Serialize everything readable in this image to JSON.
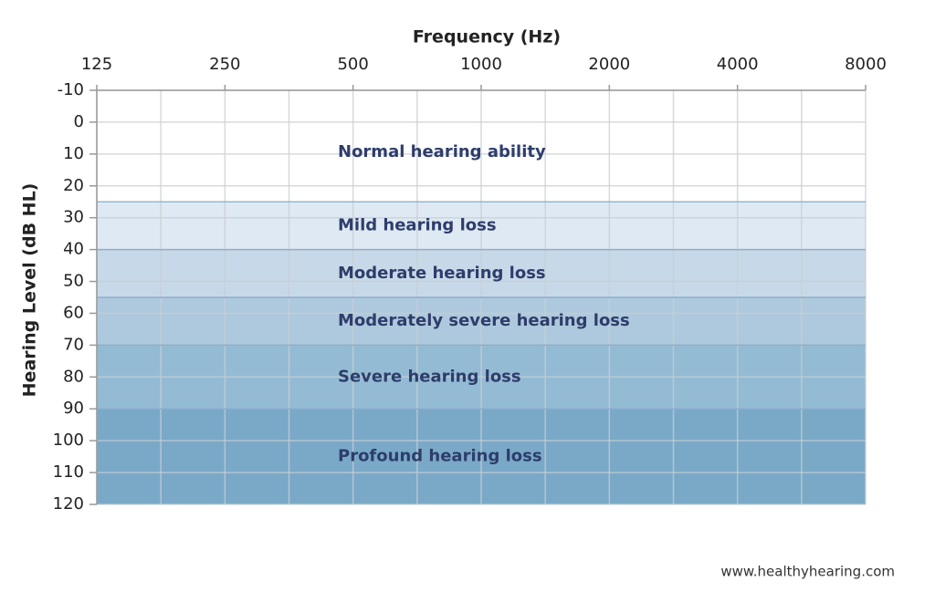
{
  "chart_data": {
    "type": "audiogram",
    "x_label": "Frequency (Hz)",
    "y_label": "Hearing Level (dB HL)",
    "xscale": "log",
    "xlim": [
      125,
      8000
    ],
    "xticks": [
      125,
      250,
      500,
      1000,
      2000,
      4000,
      8000
    ],
    "ylim": [
      -10,
      120
    ],
    "y_inverted": true,
    "yticks": [
      -10,
      0,
      10,
      20,
      30,
      40,
      50,
      60,
      70,
      80,
      90,
      100,
      110,
      120
    ],
    "grid": true,
    "bands": [
      {
        "name": "Normal hearing ability",
        "from": -10,
        "to": 25,
        "color": "#ffffff"
      },
      {
        "name": "Mild hearing loss",
        "from": 25,
        "to": 40,
        "color": "#dfe9f3"
      },
      {
        "name": "Moderate hearing loss",
        "from": 40,
        "to": 55,
        "color": "#c7d9e8"
      },
      {
        "name": "Moderately severe hearing loss",
        "from": 55,
        "to": 70,
        "color": "#aec9dd"
      },
      {
        "name": "Severe hearing loss",
        "from": 70,
        "to": 90,
        "color": "#94bbd4"
      },
      {
        "name": "Profound hearing loss",
        "from": 90,
        "to": 120,
        "color": "#7aa9c8"
      }
    ],
    "source": "www.healthyhearing.com"
  }
}
